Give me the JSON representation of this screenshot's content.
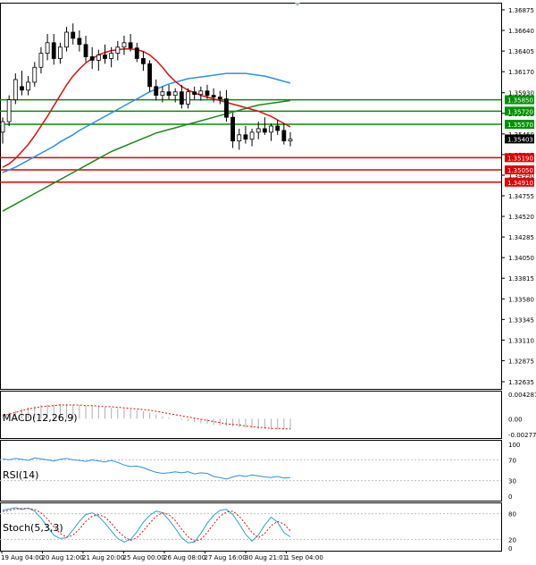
{
  "chart_data": [
    {
      "type": "candlestick",
      "panel": "price",
      "y_ticks": [
        "1.36875",
        "1.36640",
        "1.36405",
        "1.36170",
        "1.35930",
        "1.35695",
        "1.35460",
        "1.35225",
        "1.34990",
        "1.34755",
        "1.34520",
        "1.34285",
        "1.34050",
        "1.33815",
        "1.33580",
        "1.33345",
        "1.33110",
        "1.32875",
        "1.32635"
      ],
      "ylim": [
        1.32635,
        1.36875
      ],
      "candles": [
        [
          1.3548,
          1.3565,
          1.3535,
          1.356
        ],
        [
          1.356,
          1.359,
          1.3555,
          1.3585
        ],
        [
          1.3585,
          1.3615,
          1.358,
          1.3608
        ],
        [
          1.36,
          1.3618,
          1.359,
          1.3596
        ],
        [
          1.3596,
          1.3612,
          1.359,
          1.3605
        ],
        [
          1.3605,
          1.3628,
          1.36,
          1.3622
        ],
        [
          1.3622,
          1.3645,
          1.3615,
          1.3638
        ],
        [
          1.3638,
          1.366,
          1.363,
          1.365
        ],
        [
          1.365,
          1.366,
          1.3625,
          1.3632
        ],
        [
          1.3632,
          1.365,
          1.3626,
          1.3645
        ],
        [
          1.3645,
          1.3668,
          1.364,
          1.3662
        ],
        [
          1.3662,
          1.3672,
          1.3648,
          1.3655
        ],
        [
          1.3655,
          1.3664,
          1.364,
          1.3648
        ],
        [
          1.3648,
          1.3658,
          1.3628,
          1.3634
        ],
        [
          1.3634,
          1.3645,
          1.362,
          1.363
        ],
        [
          1.363,
          1.3642,
          1.3618,
          1.3636
        ],
        [
          1.3636,
          1.3648,
          1.3626,
          1.3632
        ],
        [
          1.3632,
          1.3645,
          1.3622,
          1.3638
        ],
        [
          1.3638,
          1.3652,
          1.363,
          1.3645
        ],
        [
          1.3645,
          1.3658,
          1.3636,
          1.365
        ],
        [
          1.365,
          1.366,
          1.364,
          1.3644
        ],
        [
          1.3644,
          1.365,
          1.3628,
          1.3632
        ],
        [
          1.3632,
          1.364,
          1.3618,
          1.3626
        ],
        [
          1.3626,
          1.363,
          1.3594,
          1.36
        ],
        [
          1.36,
          1.3608,
          1.3584,
          1.359
        ],
        [
          1.359,
          1.36,
          1.3582,
          1.3594
        ],
        [
          1.3594,
          1.3602,
          1.3585,
          1.359
        ],
        [
          1.359,
          1.3598,
          1.3582,
          1.3594
        ],
        [
          1.3594,
          1.3602,
          1.3575,
          1.358
        ],
        [
          1.358,
          1.3598,
          1.3575,
          1.3594
        ],
        [
          1.3594,
          1.36,
          1.3585,
          1.3591
        ],
        [
          1.3591,
          1.36,
          1.3584,
          1.3595
        ],
        [
          1.3595,
          1.3602,
          1.3586,
          1.359
        ],
        [
          1.359,
          1.3598,
          1.3582,
          1.3588
        ],
        [
          1.3588,
          1.3595,
          1.358,
          1.3586
        ],
        [
          1.3586,
          1.3596,
          1.356,
          1.3565
        ],
        [
          1.3565,
          1.357,
          1.353,
          1.3538
        ],
        [
          1.3538,
          1.3552,
          1.3528,
          1.3545
        ],
        [
          1.3545,
          1.3555,
          1.3535,
          1.354
        ],
        [
          1.354,
          1.3552,
          1.3532,
          1.3548
        ],
        [
          1.3548,
          1.356,
          1.354,
          1.3552
        ],
        [
          1.3552,
          1.3565,
          1.3545,
          1.3548
        ],
        [
          1.3548,
          1.3558,
          1.3538,
          1.3555
        ],
        [
          1.3555,
          1.3562,
          1.3545,
          1.355
        ],
        [
          1.355,
          1.3558,
          1.3534,
          1.3538
        ],
        [
          1.3538,
          1.3548,
          1.3532,
          1.354
        ]
      ],
      "ma_red": [
        1.3508,
        1.3512,
        1.3518,
        1.3526,
        1.3534,
        1.3544,
        1.3555,
        1.3566,
        1.3578,
        1.359,
        1.3602,
        1.3612,
        1.362,
        1.3627,
        1.3632,
        1.3636,
        1.3639,
        1.3641,
        1.3642,
        1.3643,
        1.3643,
        1.3642,
        1.364,
        1.3636,
        1.363,
        1.3622,
        1.3613,
        1.3606,
        1.36,
        1.3596,
        1.3593,
        1.359,
        1.3588,
        1.3586,
        1.3584,
        1.3582,
        1.358,
        1.3578,
        1.3576,
        1.3574,
        1.3572,
        1.3569,
        1.3566,
        1.3562,
        1.3558,
        1.3554
      ],
      "ma_blue": [
        1.3502,
        1.3505,
        1.3508,
        1.3512,
        1.3516,
        1.352,
        1.3524,
        1.3528,
        1.3532,
        1.3537,
        1.3541,
        1.3545,
        1.355,
        1.3554,
        1.3558,
        1.3562,
        1.3566,
        1.357,
        1.3574,
        1.3578,
        1.3582,
        1.3586,
        1.359,
        1.3594,
        1.3597,
        1.36,
        1.3603,
        1.3605,
        1.3607,
        1.3609,
        1.361,
        1.3611,
        1.3612,
        1.3613,
        1.3614,
        1.3615,
        1.3615,
        1.3615,
        1.3615,
        1.3614,
        1.3613,
        1.3612,
        1.361,
        1.3608,
        1.3606,
        1.3604
      ],
      "ma_green": [
        1.3458,
        1.3462,
        1.3466,
        1.347,
        1.3474,
        1.3478,
        1.3482,
        1.3486,
        1.349,
        1.3494,
        1.3498,
        1.3502,
        1.3506,
        1.351,
        1.3514,
        1.3518,
        1.3522,
        1.3526,
        1.3529,
        1.3532,
        1.3535,
        1.3538,
        1.3541,
        1.3544,
        1.3547,
        1.3549,
        1.3551,
        1.3553,
        1.3555,
        1.3557,
        1.3559,
        1.3561,
        1.3563,
        1.3565,
        1.3567,
        1.3569,
        1.3571,
        1.3573,
        1.3575,
        1.3577,
        1.3579,
        1.358,
        1.3581,
        1.3582,
        1.3583,
        1.3584
      ],
      "levels": [
        {
          "value": 1.3585,
          "label": "1.35850",
          "color": "#009100"
        },
        {
          "value": 1.3572,
          "label": "1.35720",
          "color": "#009100"
        },
        {
          "value": 1.3557,
          "label": "1.35570",
          "color": "#009100"
        },
        {
          "value": 1.3519,
          "label": "1.35190",
          "color": "#e00000"
        },
        {
          "value": 1.3505,
          "label": "1.35050",
          "color": "#e00000"
        },
        {
          "value": 1.3491,
          "label": "1.34910",
          "color": "#e00000"
        }
      ],
      "current_price": {
        "value": 1.35403,
        "label": "1.35403"
      }
    },
    {
      "type": "histogram+line",
      "panel": "macd",
      "title": "MACD(12,26,9)",
      "y_ticks": [
        "0.004287",
        "0.00",
        "-0.002771"
      ],
      "ylim": [
        -0.002771,
        0.004287
      ],
      "histogram": [
        0.0008,
        0.0011,
        0.0014,
        0.0017,
        0.002,
        0.0022,
        0.0024,
        0.0025,
        0.0026,
        0.0026,
        0.0026,
        0.0025,
        0.0024,
        0.0023,
        0.0022,
        0.0021,
        0.002,
        0.0019,
        0.0018,
        0.0017,
        0.0016,
        0.0015,
        0.0013,
        0.001,
        0.0007,
        0.0004,
        0.0002,
        0.0,
        -0.0002,
        -0.0004,
        -0.0006,
        -0.0008,
        -0.0009,
        -0.0011,
        -0.0012,
        -0.0013,
        -0.0014,
        -0.0015,
        -0.0016,
        -0.0017,
        -0.0018,
        -0.0018,
        -0.0019,
        -0.0019,
        -0.0019,
        -0.0019
      ],
      "signal": [
        0.0005,
        0.0008,
        0.0011,
        0.0014,
        0.0017,
        0.0019,
        0.0021,
        0.0022,
        0.0023,
        0.0024,
        0.0024,
        0.0024,
        0.0024,
        0.0023,
        0.0023,
        0.0022,
        0.0021,
        0.0021,
        0.002,
        0.0019,
        0.0018,
        0.0017,
        0.0016,
        0.0015,
        0.0013,
        0.0011,
        0.0009,
        0.0007,
        0.0005,
        0.0003,
        0.0001,
        -0.0001,
        -0.0003,
        -0.0005,
        -0.0007,
        -0.0009,
        -0.001,
        -0.0011,
        -0.0013,
        -0.0014,
        -0.0015,
        -0.0016,
        -0.0017,
        -0.0017,
        -0.0018,
        -0.0018
      ]
    },
    {
      "type": "line",
      "panel": "rsi",
      "title": "RSI(14)",
      "y_ticks": [
        "100",
        "70",
        "30",
        "0"
      ],
      "ylim": [
        0,
        100
      ],
      "values": [
        72,
        70,
        73,
        71,
        69,
        74,
        72,
        70,
        68,
        71,
        73,
        70,
        69,
        67,
        70,
        68,
        66,
        69,
        65,
        60,
        57,
        58,
        55,
        50,
        46,
        44,
        45,
        47,
        45,
        47,
        43,
        45,
        44,
        38,
        36,
        33,
        37,
        40,
        38,
        41,
        39,
        37,
        36,
        38,
        35,
        36
      ]
    },
    {
      "type": "line",
      "panel": "stochastic",
      "title": "Stoch(5,3,3)",
      "y_ticks": [
        "80",
        "20",
        "0"
      ],
      "ylim": [
        0,
        100
      ],
      "k": [
        88,
        91,
        94,
        90,
        93,
        86,
        70,
        50,
        30,
        22,
        24,
        42,
        62,
        78,
        82,
        74,
        58,
        40,
        22,
        14,
        20,
        38,
        60,
        76,
        86,
        82,
        66,
        46,
        24,
        12,
        14,
        34,
        58,
        76,
        88,
        90,
        78,
        56,
        32,
        16,
        30,
        54,
        72,
        60,
        36,
        26
      ],
      "d": [
        85,
        88,
        91,
        92,
        92,
        90,
        82,
        68,
        50,
        34,
        25,
        30,
        44,
        62,
        74,
        78,
        72,
        58,
        40,
        26,
        18,
        24,
        40,
        58,
        74,
        82,
        78,
        64,
        44,
        26,
        16,
        20,
        36,
        56,
        74,
        84,
        86,
        74,
        56,
        36,
        24,
        34,
        52,
        62,
        56,
        40
      ]
    }
  ],
  "x_labels": [
    "19 Aug 04:00",
    "20 Aug 12:00",
    "21 Aug 20:00",
    "25 Aug 00:00",
    "26 Aug 08:00",
    "27 Aug 16:00",
    "30 Aug 21:01",
    "1 Sep 04:00"
  ]
}
